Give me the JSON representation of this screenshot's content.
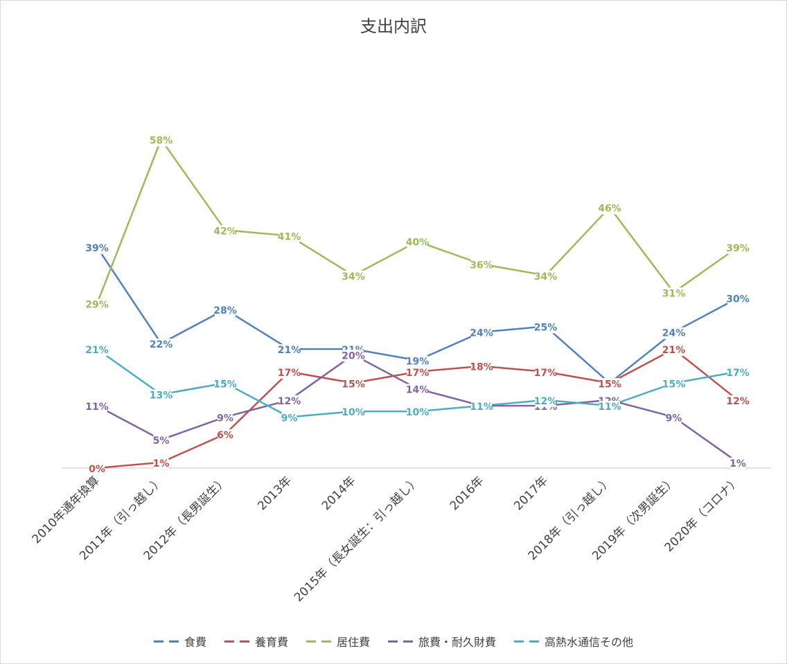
{
  "chart_data": {
    "type": "line",
    "title": "支出内訳",
    "categories": [
      "2010年通年換算",
      "2011年（引っ越し）",
      "2012年（長男誕生）",
      "2013年",
      "2014年",
      "2015年（長女誕生：引っ越し）",
      "2016年",
      "2017年",
      "2018年（引っ越し）",
      "2019年（次男誕生）",
      "2020年（コロナ）"
    ],
    "ylim": [
      0,
      0.6
    ],
    "grid": false,
    "legend_position": "bottom",
    "series": [
      {
        "name": "食費",
        "color": "#4f81bd",
        "values": [
          0.39,
          0.22,
          0.28,
          0.21,
          0.21,
          0.19,
          0.24,
          0.25,
          0.15,
          0.24,
          0.3
        ],
        "labels": [
          "39%",
          "22%",
          "28%",
          "21%",
          "21%",
          "19%",
          "24%",
          "25%",
          "15%",
          "24%",
          "30%"
        ]
      },
      {
        "name": "養育費",
        "color": "#c0504d",
        "values": [
          0.0,
          0.01,
          0.06,
          0.17,
          0.15,
          0.17,
          0.18,
          0.17,
          0.15,
          0.21,
          0.12
        ],
        "labels": [
          "0%",
          "1%",
          "6%",
          "17%",
          "15%",
          "17%",
          "18%",
          "17%",
          "15%",
          "21%",
          "12%"
        ]
      },
      {
        "name": "居住費",
        "color": "#9bbb59",
        "values": [
          0.29,
          0.58,
          0.42,
          0.41,
          0.34,
          0.4,
          0.36,
          0.34,
          0.46,
          0.31,
          0.39
        ],
        "labels": [
          "29%",
          "58%",
          "42%",
          "41%",
          "34%",
          "40%",
          "36%",
          "34%",
          "46%",
          "31%",
          "39%"
        ]
      },
      {
        "name": "旅費・耐久財費",
        "color": "#8064a2",
        "values": [
          0.11,
          0.05,
          0.09,
          0.12,
          0.2,
          0.14,
          0.11,
          0.11,
          0.12,
          0.09,
          0.01
        ],
        "labels": [
          "11%",
          "5%",
          "9%",
          "12%",
          "20%",
          "14%",
          "11%",
          "11%",
          "12%",
          "9%",
          "1%"
        ]
      },
      {
        "name": "高熱水通信その他",
        "color": "#4bacc6",
        "values": [
          0.21,
          0.13,
          0.15,
          0.09,
          0.1,
          0.1,
          0.11,
          0.12,
          0.11,
          0.15,
          0.17
        ],
        "labels": [
          "21%",
          "13%",
          "15%",
          "9%",
          "10%",
          "10%",
          "11%",
          "12%",
          "11%",
          "15%",
          "17%"
        ]
      }
    ]
  }
}
